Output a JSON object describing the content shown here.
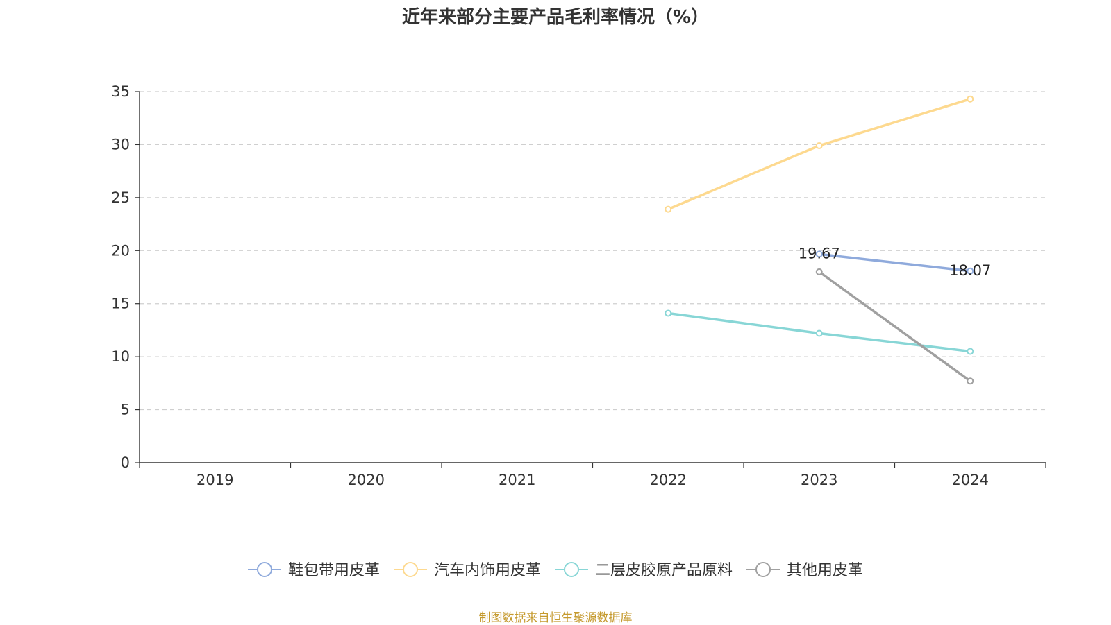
{
  "chart_data": {
    "type": "line",
    "title": "近年来部分主要产品毛利率情况（%）",
    "categories": [
      "2019",
      "2020",
      "2021",
      "2022",
      "2023",
      "2024"
    ],
    "ylim": [
      0,
      35
    ],
    "y_ticks": [
      0,
      5,
      10,
      15,
      20,
      25,
      30,
      35
    ],
    "grid": true,
    "legend_position": "bottom",
    "series": [
      {
        "name": "鞋包带用皮革",
        "color": "#8faadc",
        "values": [
          null,
          null,
          null,
          null,
          19.67,
          18.07
        ],
        "data_labels": [
          null,
          null,
          null,
          null,
          "19.67",
          "18.07"
        ]
      },
      {
        "name": "汽车内饰用皮革",
        "color": "#fdd98f",
        "values": [
          null,
          null,
          null,
          23.9,
          29.9,
          34.3
        ],
        "data_labels": [
          null,
          null,
          null,
          null,
          null,
          null
        ]
      },
      {
        "name": "二层皮胶原产品原料",
        "color": "#88d6d6",
        "values": [
          null,
          null,
          null,
          14.1,
          12.2,
          10.5
        ],
        "data_labels": [
          null,
          null,
          null,
          null,
          null,
          null
        ]
      },
      {
        "name": "其他用皮革",
        "color": "#a0a0a0",
        "values": [
          null,
          null,
          null,
          null,
          18.0,
          7.7
        ],
        "data_labels": [
          null,
          null,
          null,
          null,
          null,
          null
        ]
      }
    ],
    "source": "制图数据来自恒生聚源数据库"
  }
}
